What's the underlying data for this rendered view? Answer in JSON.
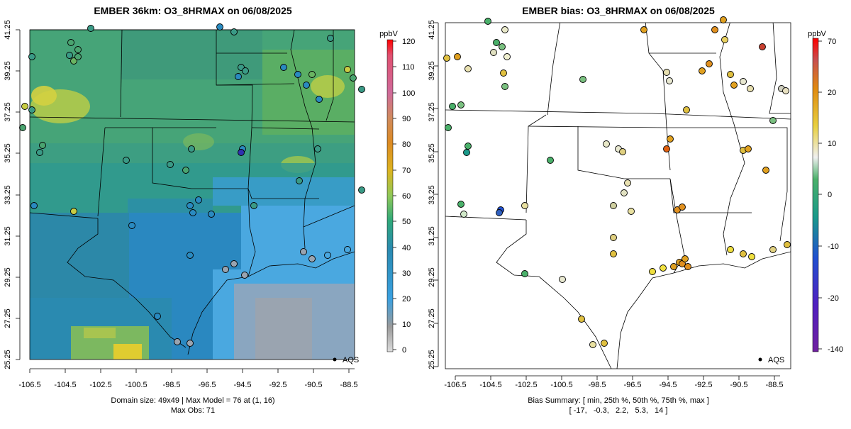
{
  "left_panel": {
    "title": "EMBER 36km: O3_8HRMAX on 06/08/2025",
    "x_ticks": [
      "-106.5",
      "-104.5",
      "-102.5",
      "-100.5",
      "-98.5",
      "-96.5",
      "-94.5",
      "-92.5",
      "-90.5",
      "-88.5"
    ],
    "y_ticks": [
      "41.25",
      "39.25",
      "37.25",
      "35.25",
      "33.25",
      "31.25",
      "29.25",
      "27.25",
      "25.25"
    ],
    "footer_line1": "Domain size: 49x49 | Max Model = 76 at (1, 16)",
    "footer_line2": "Max Obs: 71",
    "legend_label": "AQS",
    "colorbar": {
      "unit": "ppbV",
      "labels": [
        "120",
        "110",
        "100",
        "90",
        "80",
        "70",
        "60",
        "50",
        "40",
        "30",
        "20",
        "10",
        "0"
      ],
      "colors": [
        "#ff0000",
        "#e03060",
        "#cf6a9a",
        "#cf8a5e",
        "#dc8a22",
        "#dcb420",
        "#cfd040",
        "#8fc858",
        "#2fa87a",
        "#2a8ab0",
        "#3aa0e0",
        "#9a9a9a",
        "#dcdcdc"
      ]
    }
  },
  "right_panel": {
    "title": "EMBER bias: O3_8HRMAX on 06/08/2025",
    "x_ticks": [
      "-106.5",
      "-104.5",
      "-102.5",
      "-100.5",
      "-98.5",
      "-96.5",
      "-94.5",
      "-92.5",
      "-90.5",
      "-88.5"
    ],
    "y_ticks": [
      "41.25",
      "39.25",
      "37.25",
      "35.25",
      "33.25",
      "31.25",
      "29.25",
      "27.25",
      "25.25"
    ],
    "footer_line1": "Bias Summary: [ min, 25th %, 50th %, 75th %, max ]",
    "footer_line2": "[ -17,   -0.3,   2.2,   5.3,   14 ]",
    "legend_label": "AQS",
    "colorbar": {
      "unit": "ppbV",
      "labels": [
        "70",
        "20",
        "10",
        "0",
        "-10",
        "-20",
        "-140"
      ],
      "colors": [
        "#ff0000",
        "#d84a2a",
        "#e08a10",
        "#e8d040",
        "#f0f0f0",
        "#4ab06a",
        "#1a9a8a",
        "#2060c0",
        "#3030c8",
        "#7020a0"
      ]
    }
  },
  "colors": {
    "model_green": "#5fae6a",
    "model_teal": "#2f9a8a",
    "model_blue": "#2a8ac0",
    "model_sky": "#4aa8e0",
    "model_gray": "#9aa4b0",
    "model_yellow": "#d8d040"
  }
}
